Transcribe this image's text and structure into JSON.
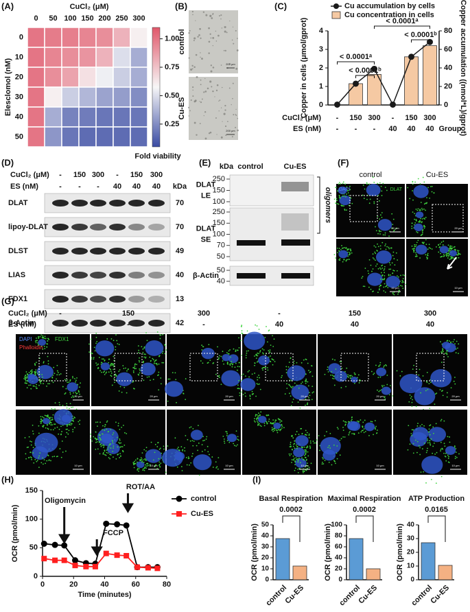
{
  "chart_data": [
    {
      "type": "heatmap",
      "panel": "(A)",
      "x_label": "CuCl₂ (μM)",
      "y_label": "Elesclomol (nM)",
      "x_categories": [
        0,
        50,
        100,
        150,
        200,
        250,
        300
      ],
      "y_categories": [
        0,
        10,
        20,
        30,
        40,
        50
      ],
      "values": [
        [
          1.0,
          0.98,
          0.97,
          0.95,
          0.92,
          0.8,
          0.6
        ],
        [
          1.0,
          0.95,
          0.92,
          0.9,
          0.8,
          0.5,
          0.35
        ],
        [
          1.0,
          0.92,
          0.85,
          0.65,
          0.55,
          0.45,
          0.35
        ],
        [
          1.0,
          0.6,
          0.45,
          0.38,
          0.32,
          0.3,
          0.25
        ],
        [
          1.0,
          0.35,
          0.22,
          0.2,
          0.18,
          0.18,
          0.18
        ],
        [
          1.0,
          0.28,
          0.18,
          0.15,
          0.15,
          0.15,
          0.15
        ]
      ],
      "zlim": [
        0.05,
        1.1
      ],
      "colors": [
        "#3a4ba3",
        "#f7f7f7",
        "#e0576a"
      ],
      "colorbar_ticks": [
        0.25,
        {
          "value": 0.5,
          "label": "0.50"
        },
        0.75,
        {
          "value": 1,
          "label": "1.00"
        }
      ],
      "colorbar_label": "Fold viability"
    },
    {
      "type": "bar_line",
      "panel": "(C)",
      "category_rows": [
        {
          "label": "CuCl₂ (μM)",
          "values": [
            "-",
            150,
            300,
            "-",
            150,
            300
          ]
        },
        {
          "label": "ES (nM)",
          "values": [
            "-",
            "-",
            "-",
            40,
            40,
            40
          ]
        }
      ],
      "group_label": "Group",
      "series": [
        {
          "name": "Cu accumulation by cells",
          "type": "line",
          "color": "#1a1a1a",
          "values": [
            0.02,
            1.15,
            1.95,
            0.02,
            2.6,
            3.4
          ]
        },
        {
          "name": "Cu concentration in cells",
          "type": "bar",
          "axis": "y2",
          "color": "#f5c9a3",
          "values": [
            0,
            23,
            33,
            0,
            52,
            64
          ]
        }
      ],
      "ylabel": "Copper in cells (μmol/gprot)",
      "y2label": "Copper accumulation ((nmol*L)/gprot)",
      "ylim": [
        0,
        4
      ],
      "yticks": [
        0,
        1,
        2,
        3,
        4
      ],
      "y2lim": [
        0,
        80
      ],
      "y2ticks": [
        0,
        20,
        40,
        60,
        80
      ],
      "annotations": [
        "< 0.0001ᵃ",
        "< 0.0001ᵇ",
        "< 0.0001ᵃ",
        "< 0.0001ᵇ"
      ]
    },
    {
      "type": "line",
      "panel": "(H)",
      "x": [
        1,
        8,
        14,
        21,
        28,
        34,
        41,
        48,
        54,
        61,
        68,
        74
      ],
      "series": [
        {
          "name": "control",
          "color": "#000000",
          "marker": "circle",
          "values": [
            57,
            55,
            54,
            28,
            23,
            22,
            92,
            91,
            89,
            16,
            16,
            16
          ]
        },
        {
          "name": "Cu-ES",
          "color": "#ff1f1f",
          "marker": "square",
          "values": [
            31,
            28,
            28,
            19,
            17,
            17,
            40,
            37,
            36,
            16,
            15,
            14
          ]
        }
      ],
      "xlim": [
        0,
        80
      ],
      "xticks": [
        0,
        20,
        40,
        60,
        80
      ],
      "ylim": [
        0,
        150
      ],
      "yticks": [
        0,
        50,
        100,
        150
      ],
      "xlabel": "Time (minutes)",
      "ylabel": "OCR (pmol/min)",
      "annotations": [
        {
          "text": "Oligomycin",
          "x": 14
        },
        {
          "text": "FCCP",
          "x": 35
        },
        {
          "text": "ROT/AA",
          "x": 55
        }
      ]
    },
    {
      "type": "bar",
      "panel": "(I)",
      "title": "Basal Respiration",
      "categories": [
        "control",
        "Cu-ES"
      ],
      "values": [
        37.5,
        12.5
      ],
      "colors": [
        "#5b9bd5",
        "#f4b183"
      ],
      "ylabel": "OCR (pmol/min)",
      "ylim": [
        0,
        50
      ],
      "yticks": [
        0,
        10,
        20,
        30,
        40,
        50
      ],
      "p_value": "0.0002"
    },
    {
      "type": "bar",
      "title": "Maximal Respiration",
      "categories": [
        "control",
        "Cu-ES"
      ],
      "values": [
        75,
        20
      ],
      "colors": [
        "#5b9bd5",
        "#f4b183"
      ],
      "ylabel": "OCR (pmol/min)",
      "ylim": [
        0,
        100
      ],
      "yticks": [
        0,
        20,
        40,
        60,
        80,
        100
      ],
      "p_value": "0.0002"
    },
    {
      "type": "bar",
      "title": "ATP Production",
      "categories": [
        "control",
        "Cu-ES"
      ],
      "values": [
        27,
        10.5
      ],
      "colors": [
        "#5b9bd5",
        "#f4b183"
      ],
      "ylabel": "OCR (pmol/min)",
      "ylim": [
        0,
        40
      ],
      "yticks": [
        0,
        10,
        20,
        30,
        40
      ],
      "p_value": "0.0165"
    }
  ],
  "panel_b": {
    "label": "(B)",
    "rows": [
      "control",
      "Cu-ES"
    ],
    "scale": "200 μm"
  },
  "panel_d": {
    "label": "(D)",
    "header_rows": [
      {
        "label": "CuCl₂ (μM)",
        "values": [
          "-",
          150,
          300,
          "-",
          150,
          300
        ]
      },
      {
        "label": "ES (nM)",
        "values": [
          "-",
          "-",
          "-",
          40,
          40,
          40
        ]
      }
    ],
    "kda_label": "kDa",
    "rows": [
      {
        "name": "DLAT",
        "kda": 70
      },
      {
        "name": "lipoy-DLAT",
        "kda": 70
      },
      {
        "name": "DLST",
        "kda": 49
      },
      {
        "name": "LIAS",
        "kda": 40
      },
      {
        "name": "FDX1",
        "kda": 13
      },
      {
        "name": "β-Actin",
        "kda": 42
      }
    ]
  },
  "panel_e": {
    "label": "(E)",
    "kda_label": "kDa",
    "columns": [
      "control",
      "Cu-ES"
    ],
    "blots": [
      {
        "name": "DLAT",
        "sub": "LE",
        "markers": [
          250,
          150,
          100
        ]
      },
      {
        "name": "DLAT",
        "sub": "SE",
        "markers": [
          250,
          150,
          100,
          70,
          50
        ]
      },
      {
        "name": "β-Actin",
        "markers": [
          50,
          40
        ]
      }
    ],
    "side_label": "oligomers"
  },
  "panel_f": {
    "label": "(F)",
    "columns": [
      "control",
      "Cu-ES"
    ],
    "stains": [
      "DAPI",
      "DLAT"
    ],
    "scale_top": "20 μm",
    "scale_bottom": "10 μm"
  },
  "panel_g": {
    "label": "(G)",
    "header_rows": [
      {
        "label": "CuCl₂ (μM)",
        "values": [
          "-",
          150,
          300,
          "-",
          150,
          300
        ]
      },
      {
        "label": "ES (nM)",
        "values": [
          "-",
          "-",
          "-",
          40,
          40,
          40
        ]
      }
    ],
    "stains": [
      "DAPI",
      "FDX1",
      "Phalloidin"
    ],
    "scale_top": "20 μm",
    "scale_bottom": "10 μm"
  }
}
